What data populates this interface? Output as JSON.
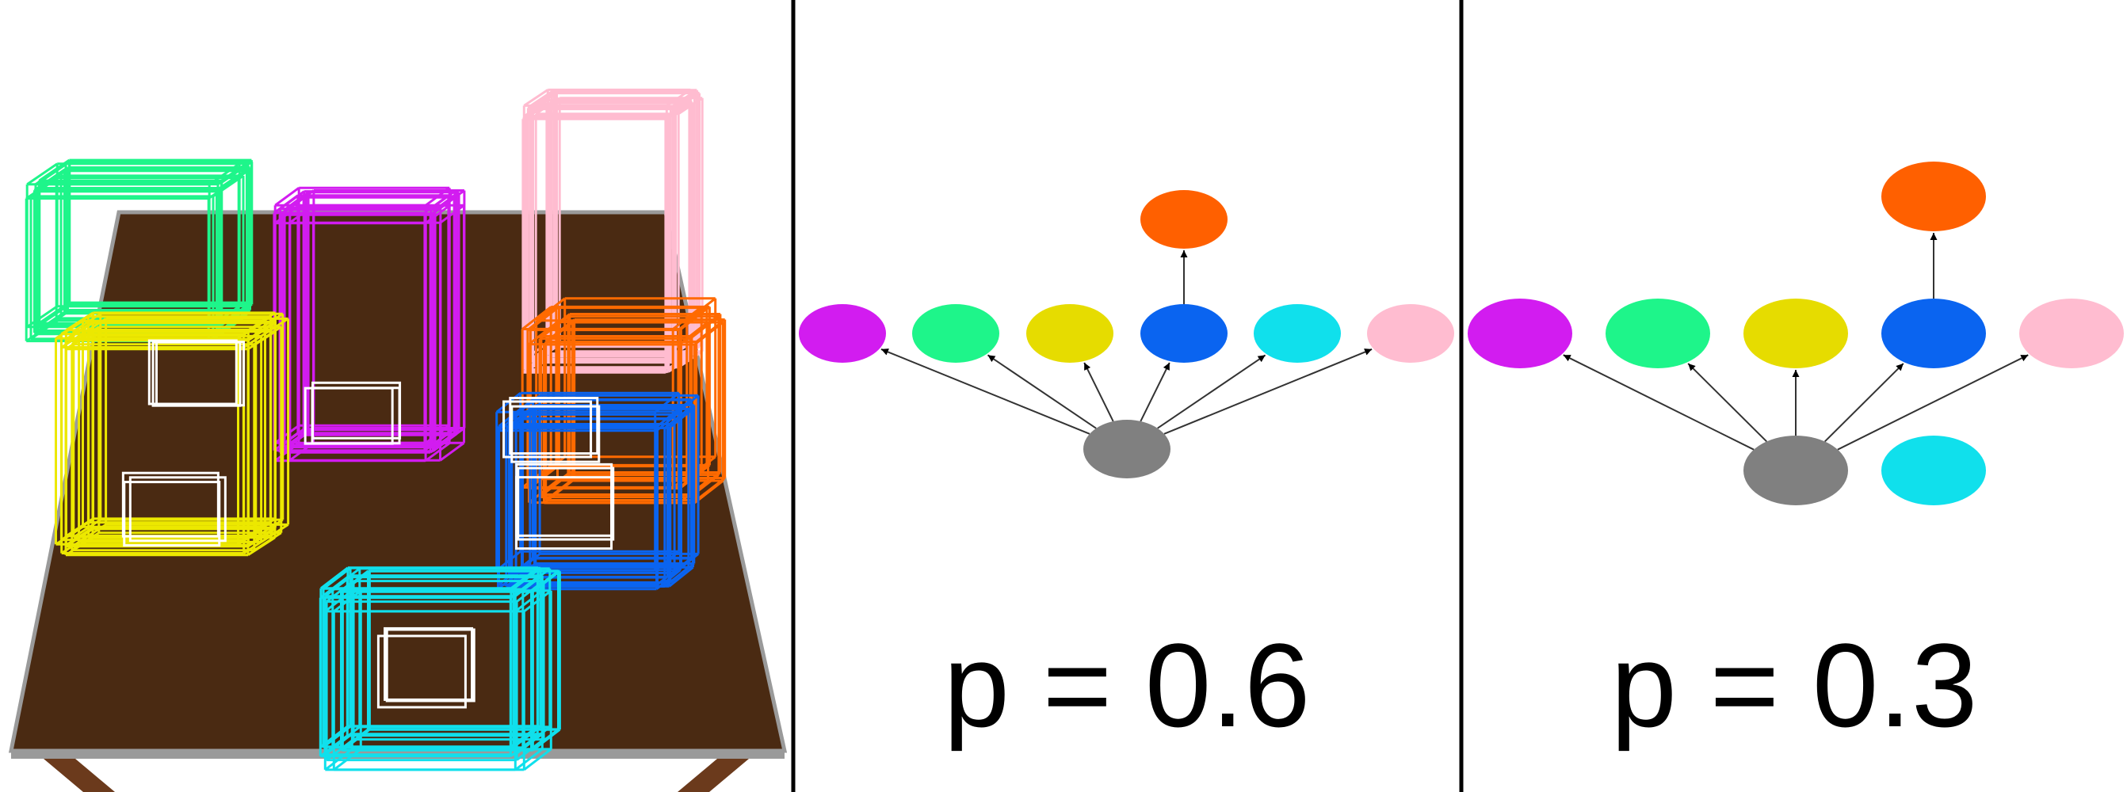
{
  "scene": {
    "table_color": "#4a2a12",
    "table_edge_color": "#9a9a9a",
    "leg_color": "#6b3a1c",
    "objects": [
      {
        "name": "green-object",
        "color": "#1ef58a"
      },
      {
        "name": "magenta-object",
        "color": "#d21cf0"
      },
      {
        "name": "pink-object",
        "color": "#ffbcd0"
      },
      {
        "name": "yellow-object",
        "color": "#ece800"
      },
      {
        "name": "orange-object",
        "color": "#ff6a00"
      },
      {
        "name": "blue-object",
        "color": "#0a64f0"
      },
      {
        "name": "cyan-object",
        "color": "#10e0ec"
      }
    ]
  },
  "panels": [
    {
      "label": "p = 0.6",
      "nodes": [
        {
          "id": "magenta",
          "color": "#d21cf0"
        },
        {
          "id": "green",
          "color": "#1ef58a"
        },
        {
          "id": "yellow",
          "color": "#e6dc00"
        },
        {
          "id": "blue",
          "color": "#0a64f0"
        },
        {
          "id": "cyan",
          "color": "#10e0ec"
        },
        {
          "id": "pink",
          "color": "#ffbcd0"
        },
        {
          "id": "orange",
          "color": "#ff6000"
        },
        {
          "id": "gray",
          "color": "#808080"
        }
      ],
      "edges": [
        [
          "gray",
          "magenta"
        ],
        [
          "gray",
          "green"
        ],
        [
          "gray",
          "yellow"
        ],
        [
          "gray",
          "blue"
        ],
        [
          "gray",
          "cyan"
        ],
        [
          "gray",
          "pink"
        ],
        [
          "blue",
          "orange"
        ]
      ]
    },
    {
      "label": "p = 0.3",
      "nodes": [
        {
          "id": "magenta",
          "color": "#d21cf0"
        },
        {
          "id": "green",
          "color": "#1ef58a"
        },
        {
          "id": "yellow",
          "color": "#e6dc00"
        },
        {
          "id": "blue",
          "color": "#0a64f0"
        },
        {
          "id": "pink",
          "color": "#ffbcd0"
        },
        {
          "id": "orange",
          "color": "#ff6000"
        },
        {
          "id": "gray",
          "color": "#808080"
        },
        {
          "id": "cyan",
          "color": "#10e0ec"
        }
      ],
      "edges": [
        [
          "gray",
          "magenta"
        ],
        [
          "gray",
          "green"
        ],
        [
          "gray",
          "yellow"
        ],
        [
          "gray",
          "blue"
        ],
        [
          "gray",
          "pink"
        ],
        [
          "blue",
          "orange"
        ]
      ]
    }
  ]
}
